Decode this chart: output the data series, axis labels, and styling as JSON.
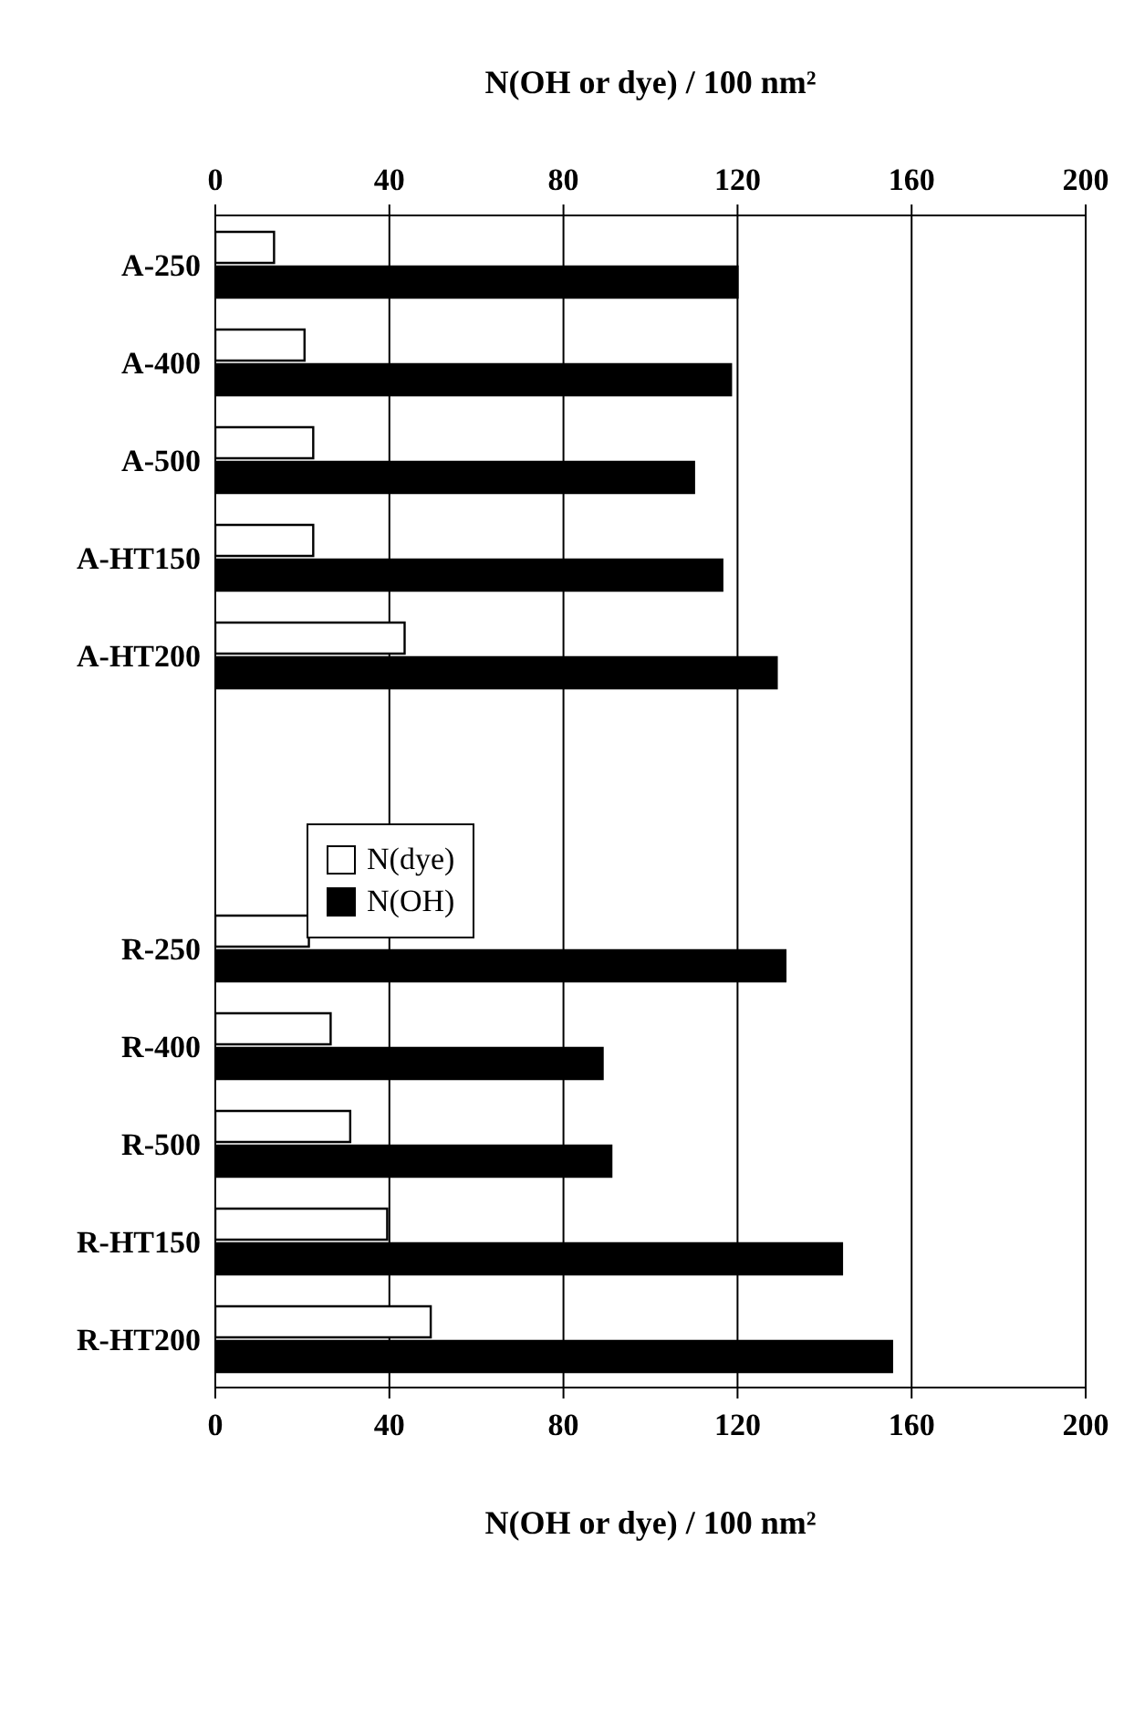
{
  "chart_data": {
    "type": "bar",
    "orientation": "horizontal",
    "xlabel": "N(OH or dye) / 100 nm²",
    "x2label": "N(OH or dye) / 100 nm²",
    "categories": [
      "A-250",
      "A-400",
      "A-500",
      "A-HT150",
      "A-HT200",
      null,
      null,
      "R-250",
      "R-400",
      "R-500",
      "R-HT150",
      "R-HT200"
    ],
    "series": [
      {
        "name": "N(dye)",
        "color": "#ffffff",
        "values": [
          13.5,
          20.5,
          22.5,
          22.5,
          43.5,
          null,
          null,
          21.5,
          26.5,
          31,
          39.5,
          49.5
        ]
      },
      {
        "name": "N(OH)",
        "color": "#000000",
        "values": [
          120,
          118.5,
          110,
          116.5,
          129,
          null,
          null,
          131,
          89,
          91,
          144,
          155.5
        ]
      }
    ],
    "xlim": [
      0,
      200
    ],
    "xticks": [
      0,
      40,
      80,
      120,
      160,
      200
    ],
    "x2lim": [
      0,
      200
    ],
    "x2ticks": [
      0,
      40,
      80,
      120,
      160,
      200
    ],
    "grid": "x",
    "legend": "left"
  }
}
